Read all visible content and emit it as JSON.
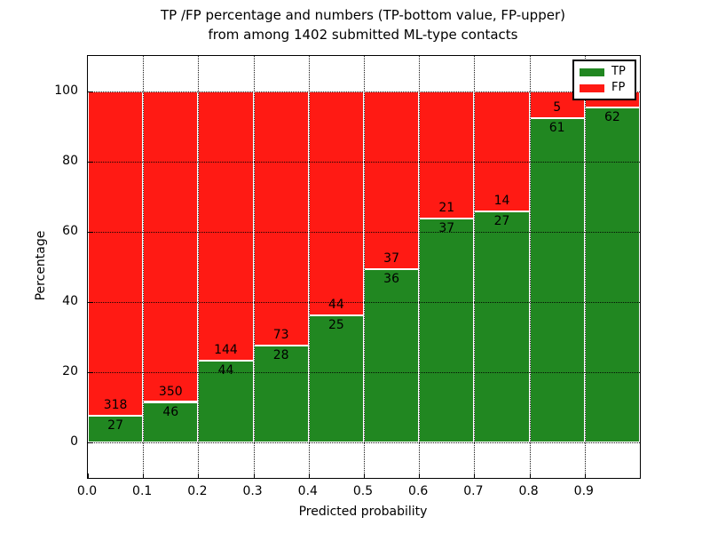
{
  "title": {
    "line1": "TP /FP percentage and numbers (TP-bottom value, FP-upper)",
    "line2": "from among 1402 submitted ML-type contacts"
  },
  "chart_data": {
    "type": "bar",
    "stacked": true,
    "title": "TP /FP percentage and numbers (TP-bottom value, FP-upper) from among 1402 submitted ML-type contacts",
    "xlabel": "Predicted probability",
    "ylabel": "Percentage",
    "x_tick_labels": [
      "0.0",
      "0.1",
      "0.2",
      "0.3",
      "0.4",
      "0.5",
      "0.6",
      "0.7",
      "0.8",
      "0.9"
    ],
    "y_tick_values": [
      0,
      20,
      40,
      60,
      80,
      100
    ],
    "xlim": [
      0.0,
      1.0
    ],
    "ylim": [
      -10,
      110
    ],
    "bin_edges": [
      0.0,
      0.1,
      0.2,
      0.3,
      0.4,
      0.5,
      0.6,
      0.7,
      0.8,
      0.9,
      1.0
    ],
    "grid": true,
    "grid_style": "dotted",
    "colors": {
      "tp": "#218721",
      "fp": "#ff1a14",
      "bar_edge": "#ffffff"
    },
    "legend": {
      "position": "upper right",
      "entries": [
        {
          "label": "TP",
          "color": "#218721"
        },
        {
          "label": "FP",
          "color": "#ff1a14"
        }
      ]
    },
    "series": [
      {
        "name": "TP",
        "counts": [
          27,
          46,
          44,
          28,
          25,
          36,
          37,
          27,
          61,
          62
        ],
        "pct": [
          7.8,
          11.6,
          23.4,
          27.7,
          36.2,
          49.3,
          63.8,
          65.9,
          92.4,
          95.4
        ]
      },
      {
        "name": "FP",
        "counts": [
          318,
          350,
          144,
          73,
          44,
          37,
          21,
          14,
          5,
          null
        ],
        "pct": [
          92.2,
          88.4,
          76.6,
          72.3,
          63.8,
          50.7,
          36.2,
          34.1,
          7.6,
          4.6
        ],
        "last_label_hidden_by_legend": true
      }
    ]
  }
}
